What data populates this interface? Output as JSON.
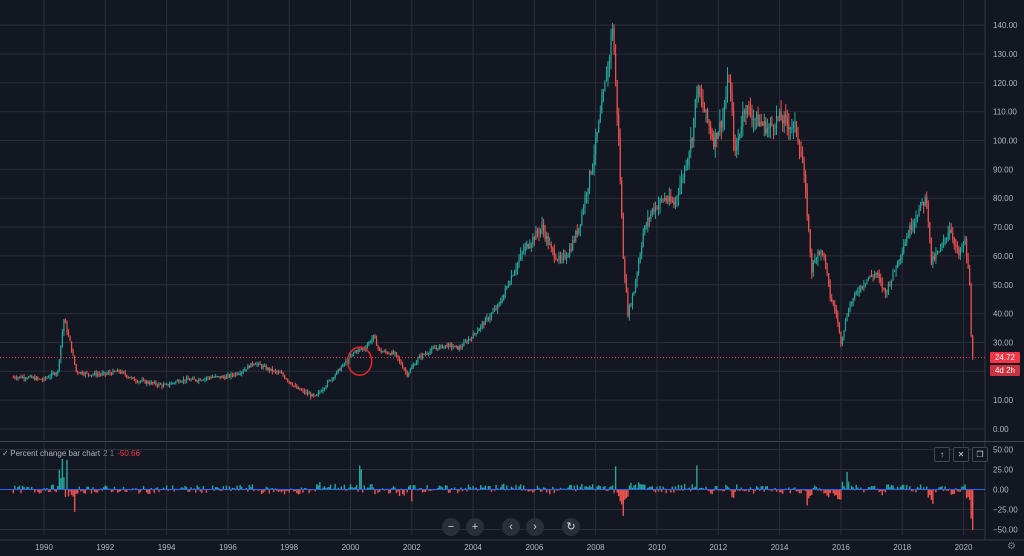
{
  "chart_data": [
    {
      "type": "candlestick",
      "title": "",
      "x_ticks": [
        "1990",
        "1992",
        "1994",
        "1996",
        "1998",
        "2000",
        "2002",
        "2004",
        "2006",
        "2008",
        "2010",
        "2012",
        "2014",
        "2016",
        "2018",
        "2020"
      ],
      "y_ticks": [
        "140.00",
        "130.00",
        "120.00",
        "110.00",
        "100.00",
        "90.00",
        "80.00",
        "70.00",
        "60.00",
        "50.00",
        "40.00",
        "30.00",
        "20.00",
        "10.00",
        "0.00"
      ],
      "ylim": [
        -2,
        150
      ],
      "xlim": [
        1988.5,
        2021.0
      ],
      "grid": true,
      "last_price": 24.72,
      "last_price_label": "24.72",
      "countdown_label": "4d 2h",
      "price_path": [
        [
          1989.0,
          18
        ],
        [
          1989.5,
          18
        ],
        [
          1990.0,
          17
        ],
        [
          1990.5,
          20
        ],
        [
          1990.7,
          38
        ],
        [
          1990.9,
          30
        ],
        [
          1991.1,
          20
        ],
        [
          1991.5,
          19
        ],
        [
          1992.0,
          19
        ],
        [
          1992.5,
          20
        ],
        [
          1993.0,
          17
        ],
        [
          1993.5,
          16
        ],
        [
          1994.0,
          15
        ],
        [
          1994.5,
          17
        ],
        [
          1995.0,
          17
        ],
        [
          1995.5,
          18
        ],
        [
          1996.0,
          18
        ],
        [
          1996.5,
          20
        ],
        [
          1996.9,
          23
        ],
        [
          1997.3,
          21
        ],
        [
          1997.8,
          19
        ],
        [
          1998.3,
          14
        ],
        [
          1998.9,
          11
        ],
        [
          1999.3,
          16
        ],
        [
          1999.8,
          22
        ],
        [
          2000.2,
          27
        ],
        [
          2000.5,
          28
        ],
        [
          2000.8,
          32
        ],
        [
          2001.0,
          27
        ],
        [
          2001.5,
          26
        ],
        [
          2001.9,
          19
        ],
        [
          2002.3,
          25
        ],
        [
          2002.8,
          28
        ],
        [
          2003.2,
          29
        ],
        [
          2003.6,
          28
        ],
        [
          2004.0,
          32
        ],
        [
          2004.5,
          38
        ],
        [
          2004.9,
          43
        ],
        [
          2005.3,
          53
        ],
        [
          2005.7,
          62
        ],
        [
          2006.0,
          66
        ],
        [
          2006.3,
          70
        ],
        [
          2006.6,
          62
        ],
        [
          2006.9,
          58
        ],
        [
          2007.2,
          62
        ],
        [
          2007.5,
          70
        ],
        [
          2007.9,
          90
        ],
        [
          2008.2,
          108
        ],
        [
          2008.5,
          130
        ],
        [
          2008.6,
          140
        ],
        [
          2008.8,
          100
        ],
        [
          2008.95,
          60
        ],
        [
          2009.1,
          40
        ],
        [
          2009.3,
          48
        ],
        [
          2009.6,
          68
        ],
        [
          2009.9,
          76
        ],
        [
          2010.3,
          80
        ],
        [
          2010.6,
          78
        ],
        [
          2010.9,
          88
        ],
        [
          2011.2,
          102
        ],
        [
          2011.35,
          118
        ],
        [
          2011.6,
          110
        ],
        [
          2011.9,
          100
        ],
        [
          2012.2,
          108
        ],
        [
          2012.4,
          122
        ],
        [
          2012.6,
          95
        ],
        [
          2012.9,
          112
        ],
        [
          2013.3,
          107
        ],
        [
          2013.7,
          104
        ],
        [
          2014.0,
          108
        ],
        [
          2014.3,
          106
        ],
        [
          2014.6,
          104
        ],
        [
          2014.8,
          92
        ],
        [
          2014.95,
          75
        ],
        [
          2015.1,
          55
        ],
        [
          2015.3,
          62
        ],
        [
          2015.5,
          60
        ],
        [
          2015.7,
          46
        ],
        [
          2015.9,
          40
        ],
        [
          2016.05,
          30
        ],
        [
          2016.3,
          42
        ],
        [
          2016.6,
          48
        ],
        [
          2016.9,
          52
        ],
        [
          2017.2,
          54
        ],
        [
          2017.5,
          47
        ],
        [
          2017.8,
          55
        ],
        [
          2018.1,
          64
        ],
        [
          2018.4,
          72
        ],
        [
          2018.7,
          78
        ],
        [
          2018.85,
          80
        ],
        [
          2019.0,
          58
        ],
        [
          2019.3,
          62
        ],
        [
          2019.6,
          70
        ],
        [
          2019.9,
          60
        ],
        [
          2020.1,
          65
        ],
        [
          2020.25,
          50
        ],
        [
          2020.32,
          24.72
        ]
      ]
    },
    {
      "type": "bar",
      "title": "Percent change bar chart",
      "params": "2 1",
      "last_value": "-50.66",
      "y_ticks": [
        "50.00",
        "25.00",
        "0.00",
        "−25.00",
        "−50.00"
      ],
      "ylim": [
        -60,
        60
      ],
      "notable_bars": [
        [
          1990.6,
          38
        ],
        [
          1990.75,
          37
        ],
        [
          1991.0,
          -28
        ],
        [
          2000.3,
          30
        ],
        [
          2000.35,
          25
        ],
        [
          2002.0,
          -15
        ],
        [
          2008.65,
          29
        ],
        [
          2008.9,
          -33
        ],
        [
          2011.3,
          30
        ],
        [
          2014.9,
          -20
        ],
        [
          2016.2,
          22
        ],
        [
          2019.0,
          -18
        ],
        [
          2020.3,
          -50.66
        ]
      ]
    }
  ],
  "legend": {
    "name": "Percent change bar chart",
    "params": "2 1",
    "value": "-50.66"
  },
  "pane_buttons": [
    "↑",
    "✕",
    "❐"
  ],
  "nav_buttons": [
    "−",
    "+",
    "‹",
    "›",
    "↻"
  ],
  "colors": {
    "background": "#131722",
    "grid": "#2a2e39",
    "up": "#26a69a",
    "down": "#ef5350",
    "last_price": "#f23645",
    "highlight_circle": "#e0252b",
    "zero_line": "#2962ff"
  }
}
